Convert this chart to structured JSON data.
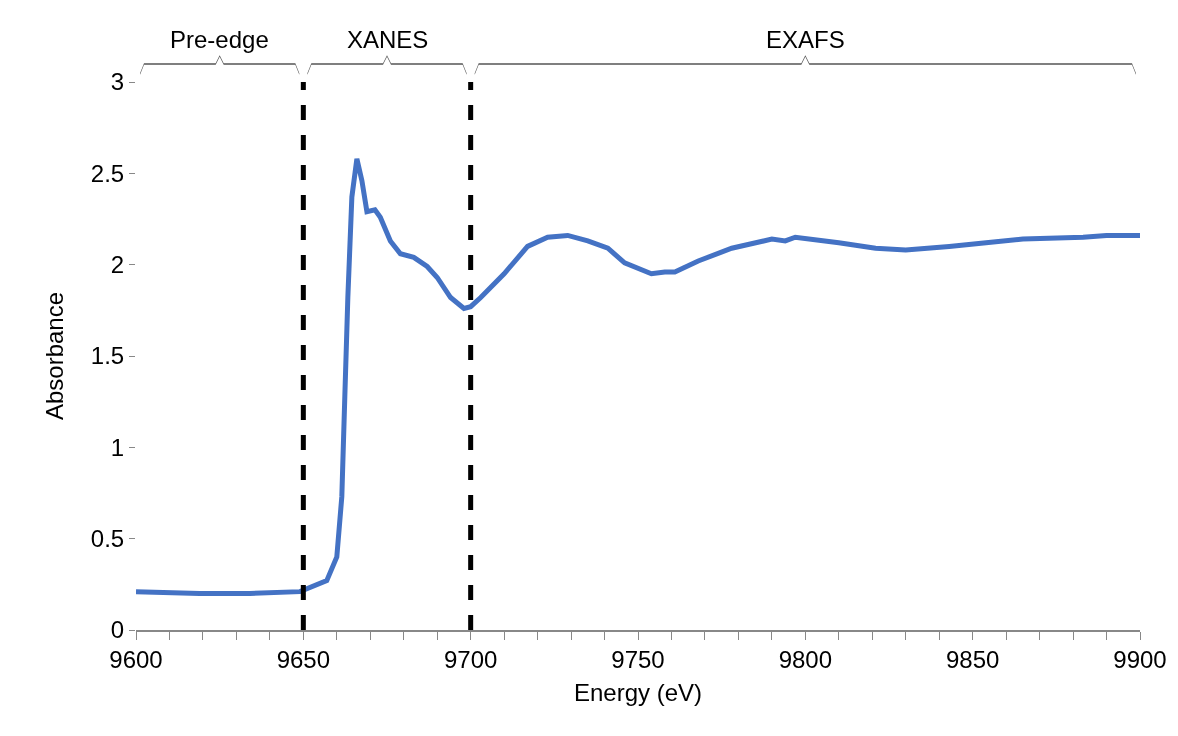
{
  "chart_data": {
    "type": "line",
    "xlabel": "Energy (eV)",
    "ylabel": "Absorbance",
    "series": [
      {
        "color": "#4472c4",
        "x": [
          9600,
          9619,
          9634,
          9649,
          9657,
          9660,
          9661.5,
          9662.4,
          9663.3,
          9664.5,
          9666,
          9667.5,
          9669,
          9671.4,
          9673,
          9676,
          9679,
          9683,
          9687,
          9690,
          9694,
          9698,
          9700,
          9703,
          9710,
          9717,
          9723,
          9729,
          9735,
          9741,
          9746,
          9754,
          9758,
          9761,
          9768,
          9778,
          9790,
          9794,
          9797,
          9810,
          9821,
          9830,
          9843,
          9854,
          9865,
          9883,
          9890,
          9900
        ],
        "values": [
          0.21,
          0.2,
          0.2,
          0.21,
          0.27,
          0.4,
          0.73,
          1.28,
          1.82,
          2.37,
          2.58,
          2.46,
          2.29,
          2.3,
          2.26,
          2.13,
          2.06,
          2.04,
          1.99,
          1.93,
          1.82,
          1.76,
          1.77,
          1.82,
          1.95,
          2.1,
          2.15,
          2.16,
          2.13,
          2.09,
          2.01,
          1.95,
          1.96,
          1.96,
          2.02,
          2.09,
          2.14,
          2.13,
          2.15,
          2.12,
          2.09,
          2.08,
          2.1,
          2.12,
          2.14,
          2.15,
          2.16,
          2.16
        ]
      }
    ],
    "xlim": [
      9600,
      9900
    ],
    "xticks": [
      9600,
      {
        "value": 9610,
        "label": null
      },
      {
        "value": 9620,
        "label": null
      },
      {
        "value": 9630,
        "label": null
      },
      {
        "value": 9640,
        "label": null
      },
      9650,
      {
        "value": 9660,
        "label": null
      },
      {
        "value": 9670,
        "label": null
      },
      {
        "value": 9680,
        "label": null
      },
      {
        "value": 9690,
        "label": null
      },
      9700,
      {
        "value": 9710,
        "label": null
      },
      {
        "value": 9720,
        "label": null
      },
      {
        "value": 9730,
        "label": null
      },
      {
        "value": 9740,
        "label": null
      },
      9750,
      {
        "value": 9760,
        "label": null
      },
      {
        "value": 9770,
        "label": null
      },
      {
        "value": 9780,
        "label": null
      },
      {
        "value": 9790,
        "label": null
      },
      9800,
      {
        "value": 9810,
        "label": null
      },
      {
        "value": 9820,
        "label": null
      },
      {
        "value": 9830,
        "label": null
      },
      {
        "value": 9840,
        "label": null
      },
      9850,
      {
        "value": 9860,
        "label": null
      },
      {
        "value": 9870,
        "label": null
      },
      {
        "value": 9880,
        "label": null
      },
      {
        "value": 9890,
        "label": null
      },
      9900
    ],
    "ylim": [
      0,
      3
    ],
    "yticks": [
      0,
      0.5,
      1,
      1.5,
      2,
      2.5,
      3
    ],
    "marker": "none",
    "line_style": "solid",
    "ref_lines": [
      {
        "axis": "x",
        "value": 9650,
        "color": "#000000",
        "line_style": "dashed"
      },
      {
        "axis": "x",
        "value": 9700,
        "color": "#000000",
        "line_style": "dashed"
      }
    ],
    "annotations": [
      "Pre-edge",
      "XANES",
      "EXAFS"
    ]
  }
}
